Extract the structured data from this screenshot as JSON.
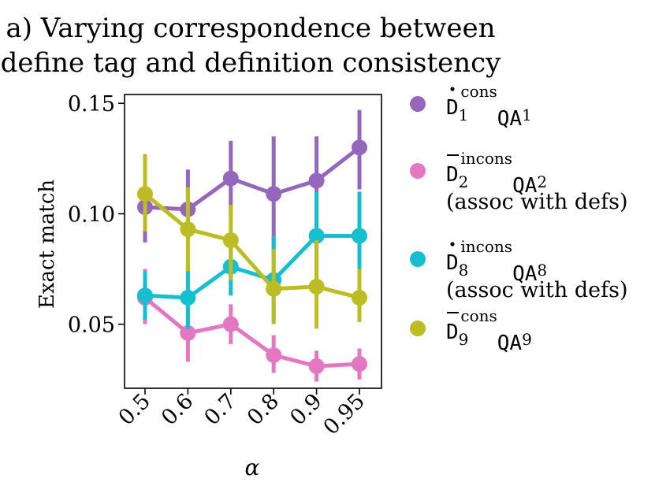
{
  "chart_data": {
    "type": "line",
    "title_lines": [
      "a) Varying correspondence between",
      "define tag and definition consistency"
    ],
    "xlabel": "α",
    "ylabel": "Exact match",
    "categories": [
      "0.5",
      "0.6",
      "0.7",
      "0.8",
      "0.9",
      "0.95"
    ],
    "ylim": [
      0.021,
      0.154
    ],
    "yticks": [
      0.05,
      0.1,
      0.15
    ],
    "ytick_labels": [
      "0.05",
      "0.10",
      "0.15"
    ],
    "grid": false,
    "legend_position": "right",
    "series": [
      {
        "name": "Ḋ1consQA1",
        "label_base": "D",
        "label_accent": "dot",
        "label_sub": "1",
        "label_sup": "cons",
        "label_mid": "QA",
        "label_sub2": "1",
        "label_extra": "",
        "color": "#9467bd",
        "values": [
          0.103,
          0.102,
          0.116,
          0.109,
          0.115,
          0.13
        ],
        "err_low": [
          0.087,
          0.088,
          0.099,
          0.083,
          0.094,
          0.111
        ],
        "err_high": [
          0.118,
          0.12,
          0.133,
          0.135,
          0.135,
          0.147
        ]
      },
      {
        "name": "D̄2inconsQA2 (assoc with defs)",
        "label_base": "D",
        "label_accent": "bar",
        "label_sub": "2",
        "label_sup": "incons",
        "label_mid": "QA",
        "label_sub2": "2",
        "label_extra": "(assoc with defs)",
        "color": "#e377c2",
        "values": [
          0.062,
          0.046,
          0.05,
          0.036,
          0.031,
          0.032
        ],
        "err_low": [
          0.05,
          0.033,
          0.041,
          0.028,
          0.024,
          0.025
        ],
        "err_high": [
          0.075,
          0.058,
          0.059,
          0.045,
          0.038,
          0.039
        ]
      },
      {
        "name": "Ḋ8inconsQA8 (assoc with defs)",
        "label_base": "D",
        "label_accent": "dot",
        "label_sub": "8",
        "label_sup": "incons",
        "label_mid": "QA",
        "label_sub2": "8",
        "label_extra": "(assoc with defs)",
        "color": "#17becf",
        "values": [
          0.063,
          0.062,
          0.076,
          0.07,
          0.09,
          0.09
        ],
        "err_low": [
          0.052,
          0.048,
          0.063,
          0.051,
          0.07,
          0.07
        ],
        "err_high": [
          0.074,
          0.077,
          0.089,
          0.09,
          0.11,
          0.11
        ]
      },
      {
        "name": "D̄9consQA9",
        "label_base": "D",
        "label_accent": "bar",
        "label_sub": "9",
        "label_sup": "cons",
        "label_mid": "QA",
        "label_sub2": "9",
        "label_extra": "",
        "color": "#bcbd22",
        "values": [
          0.109,
          0.093,
          0.088,
          0.066,
          0.067,
          0.062
        ],
        "err_low": [
          0.092,
          0.074,
          0.07,
          0.05,
          0.048,
          0.051
        ],
        "err_high": [
          0.127,
          0.112,
          0.104,
          0.084,
          0.088,
          0.075
        ]
      }
    ]
  }
}
